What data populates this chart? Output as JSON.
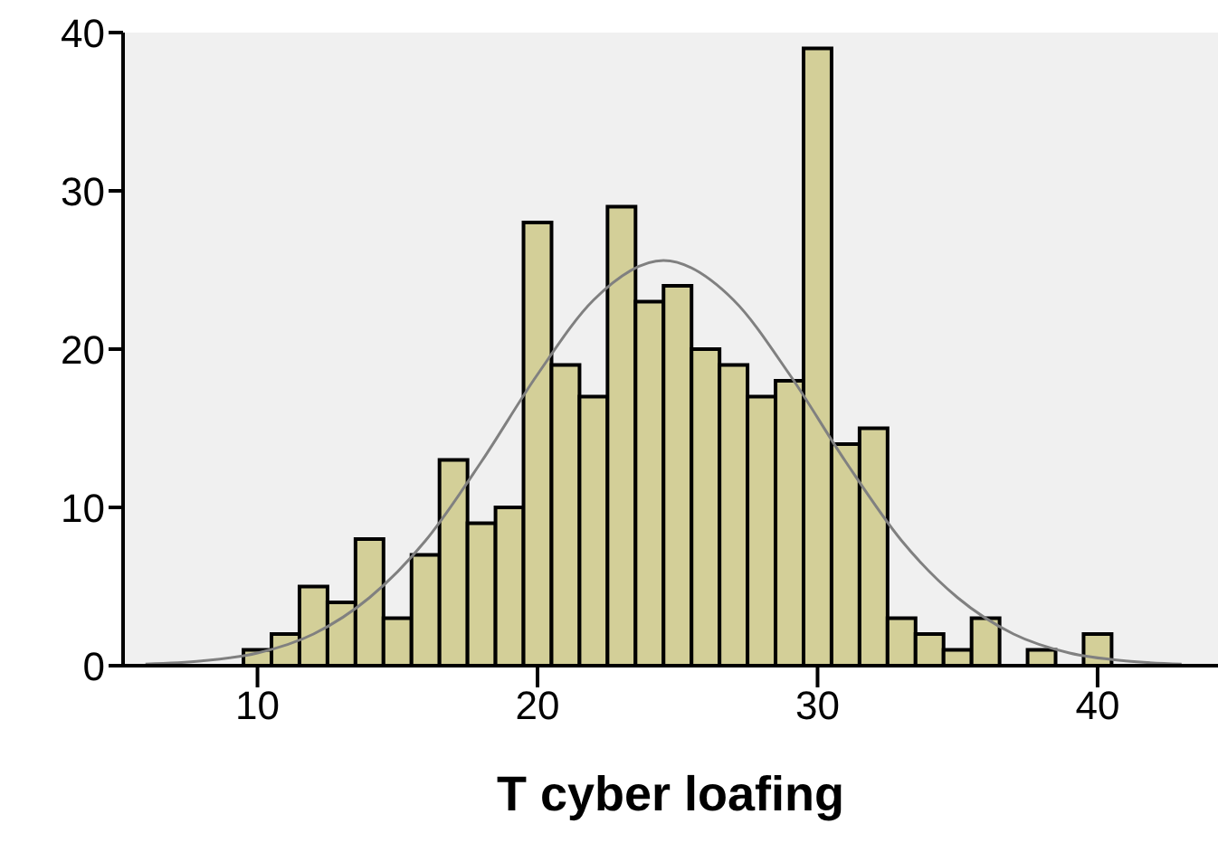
{
  "chart_data": {
    "type": "histogram",
    "xlabel": "T cyber loafing",
    "bins": [
      9.5,
      10.5,
      11.5,
      12.5,
      13.5,
      14.5,
      15.5,
      16.5,
      17.5,
      18.5,
      19.5,
      20.5,
      21.5,
      22.5,
      23.5,
      24.5,
      25.5,
      26.5,
      27.5,
      28.5,
      29.5,
      30.5,
      31.5,
      32.5,
      33.5,
      34.5,
      35.5,
      36.5,
      37.5,
      38.5,
      39.5,
      40.5
    ],
    "values": [
      1,
      2,
      5,
      4,
      8,
      3,
      7,
      13,
      9,
      10,
      28,
      19,
      17,
      29,
      23,
      24,
      20,
      19,
      17,
      18,
      39,
      14,
      15,
      3,
      2,
      1,
      3,
      0,
      1,
      0,
      2
    ],
    "color": "#d3cf98",
    "series": [
      {
        "type": "line",
        "marker": "none",
        "color": "#808080",
        "x": [
          6,
          8,
          10,
          12,
          14,
          16,
          18,
          20,
          22,
          24.5,
          27,
          29,
          31,
          33,
          35,
          37,
          39,
          41,
          43
        ],
        "values": [
          0.1,
          0.3,
          0.8,
          2.0,
          4.3,
          7.9,
          12.9,
          18.4,
          23.1,
          25.6,
          23.1,
          18.4,
          12.9,
          7.9,
          4.3,
          2.0,
          0.8,
          0.3,
          0.1
        ]
      }
    ],
    "xlim": [
      5.2,
      44.3
    ],
    "xticks": [
      10,
      20,
      30,
      40
    ],
    "ylim": [
      0,
      40
    ],
    "yticks": [
      0,
      10,
      20,
      30,
      40
    ],
    "grid": false
  }
}
